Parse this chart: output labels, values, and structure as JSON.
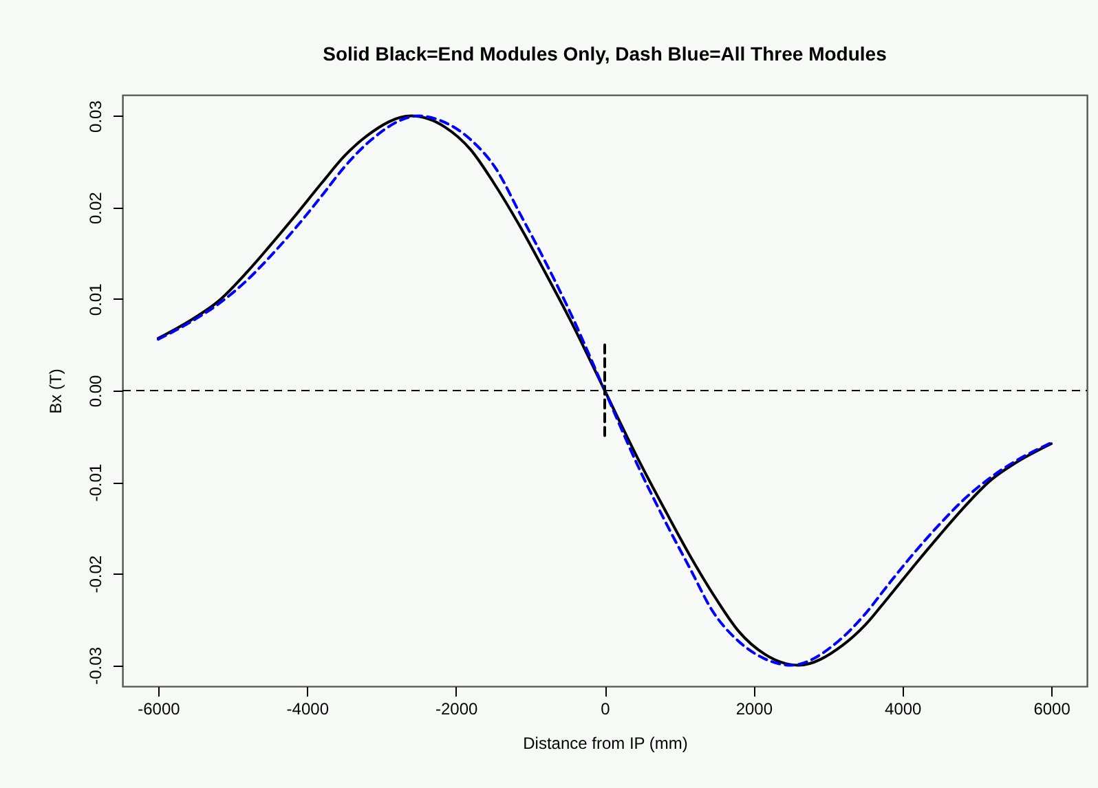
{
  "chart_data": {
    "type": "line",
    "title": "Solid Black=End Modules Only,      Dash Blue=All Three Modules",
    "xlabel": "Distance from IP (mm)",
    "ylabel": "Bx (T)",
    "xlim": [
      -6480,
      6480
    ],
    "xticks": [
      -6000,
      -4000,
      -2000,
      0,
      2000,
      4000,
      6000
    ],
    "ylim": [
      -0.0323,
      0.0323
    ],
    "yticks": [
      -0.03,
      -0.02,
      -0.01,
      {
        "value": 0,
        "label": "0.00"
      },
      0.01,
      0.02,
      0.03
    ],
    "grid": false,
    "marker": "none",
    "ref_lines": [
      {
        "axis": "y",
        "value": 0,
        "line_style": "dashed",
        "color": "#000000"
      }
    ],
    "series": [
      {
        "color": "#000000",
        "line_style": "solid",
        "x": [
          -6000,
          -5500,
          -5200,
          -4800,
          -4500,
          -4200,
          -3800,
          -3500,
          -3200,
          -2600,
          -2150,
          -1800,
          -1500,
          -1150,
          -800,
          -450,
          0,
          450,
          800,
          1150,
          1500,
          1800,
          2150,
          2600,
          3200,
          3500,
          3800,
          4200,
          4500,
          4800,
          5200,
          5500,
          6000
        ],
        "values": [
          0.0057,
          0.008,
          0.0097,
          0.013,
          0.0158,
          0.0187,
          0.0227,
          0.0256,
          0.0278,
          0.03,
          0.0288,
          0.0263,
          0.0228,
          0.0181,
          0.0129,
          0.0075,
          0,
          -0.0075,
          -0.0129,
          -0.0181,
          -0.0228,
          -0.0263,
          -0.0288,
          -0.03,
          -0.0278,
          -0.0256,
          -0.0227,
          -0.0187,
          -0.0158,
          -0.013,
          -0.0097,
          -0.008,
          -0.0058
        ]
      },
      {
        "color": "#0000ff",
        "line_style": "dashed",
        "x": [
          -6000,
          -5500,
          -5200,
          -4800,
          -4500,
          -4150,
          -3800,
          -3500,
          -3150,
          -2500,
          -2150,
          -1800,
          -1450,
          -1150,
          -800,
          -450,
          0,
          450,
          800,
          1150,
          1450,
          1800,
          2150,
          2500,
          3150,
          3500,
          3800,
          4150,
          4500,
          4800,
          5200,
          5500,
          6000
        ],
        "values": [
          0.0056,
          0.0078,
          0.0094,
          0.0121,
          0.0146,
          0.0178,
          0.0213,
          0.0244,
          0.0273,
          0.03,
          0.0293,
          0.0274,
          0.0241,
          0.0195,
          0.0141,
          0.0083,
          0,
          -0.0083,
          -0.0141,
          -0.0195,
          -0.0241,
          -0.0274,
          -0.0293,
          -0.03,
          -0.0273,
          -0.0244,
          -0.0213,
          -0.0178,
          -0.0146,
          -0.0121,
          -0.0094,
          -0.0078,
          -0.0057
        ]
      },
      {
        "type": "line",
        "color": "#000000",
        "line_style": "dashed",
        "x": [
          0,
          0
        ],
        "values": [
          0.005,
          -0.005
        ]
      }
    ]
  }
}
